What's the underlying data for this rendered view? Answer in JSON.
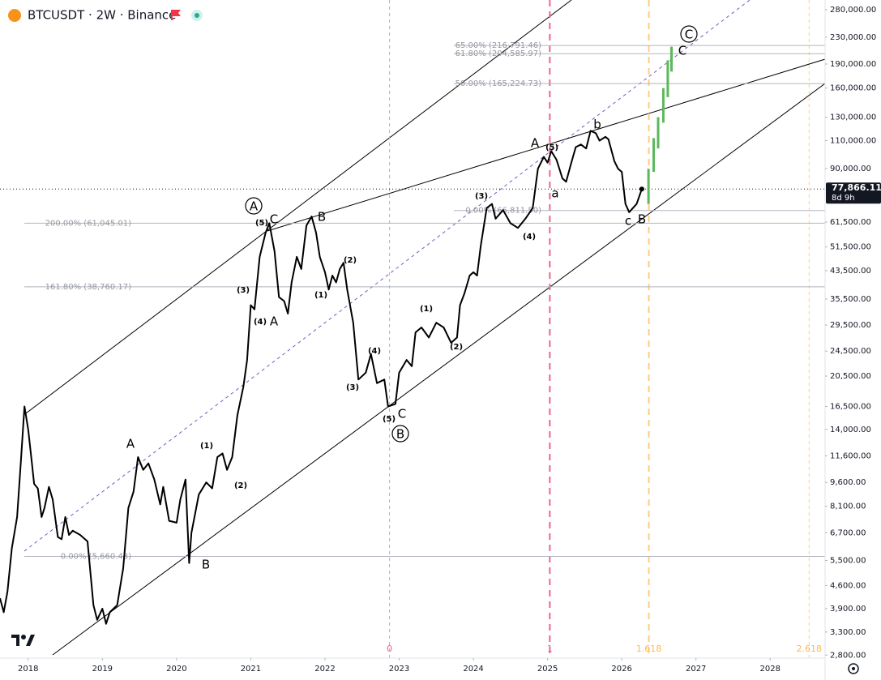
{
  "title": "BTCUSDT · 2W · Binance",
  "chart_data": {
    "type": "line",
    "log_scale": true,
    "xlim": [
      2017.62,
      2028.74
    ],
    "ylim": [
      2740,
      300000
    ],
    "xticks": [
      2018,
      2019,
      2020,
      2021,
      2022,
      2023,
      2024,
      2025,
      2026,
      2027,
      2028
    ],
    "yticks": [
      {
        "value": 280000,
        "label": "280,000.00"
      },
      {
        "value": 230000,
        "label": "230,000.00"
      },
      {
        "value": 190000,
        "label": "190,000.00"
      },
      {
        "value": 160000,
        "label": "160,000.00"
      },
      {
        "value": 130000,
        "label": "130,000.00"
      },
      {
        "value": 110000,
        "label": "110,000.00"
      },
      {
        "value": 90000,
        "label": "90,000.00"
      },
      {
        "value": 61500,
        "label": "61,500.00"
      },
      {
        "value": 51500,
        "label": "51,500.00"
      },
      {
        "value": 43500,
        "label": "43,500.00"
      },
      {
        "value": 35500,
        "label": "35,500.00"
      },
      {
        "value": 29500,
        "label": "29,500.00"
      },
      {
        "value": 24500,
        "label": "24,500.00"
      },
      {
        "value": 20500,
        "label": "20,500.00"
      },
      {
        "value": 16500,
        "label": "16,500.00"
      },
      {
        "value": 14000,
        "label": "14,000.00"
      },
      {
        "value": 11600,
        "label": "11,600.00"
      },
      {
        "value": 9600,
        "label": "9,600.00"
      },
      {
        "value": 8100,
        "label": "8,100.00"
      },
      {
        "value": 6700,
        "label": "6,700.00"
      },
      {
        "value": 5500,
        "label": "5,500.00"
      },
      {
        "value": 4600,
        "label": "4,600.00"
      },
      {
        "value": 3900,
        "label": "3,900.00"
      },
      {
        "value": 3300,
        "label": "3,300.00"
      },
      {
        "value": 2800,
        "label": "2,800.00"
      }
    ],
    "x": [
      2017.62,
      2017.67,
      2017.72,
      2017.78,
      2017.85,
      2017.9,
      2017.95,
      2018.0,
      2018.05,
      2018.08,
      2018.13,
      2018.18,
      2018.22,
      2018.28,
      2018.33,
      2018.4,
      2018.45,
      2018.5,
      2018.55,
      2018.6,
      2018.7,
      2018.8,
      2018.88,
      2018.93,
      2019.0,
      2019.05,
      2019.1,
      2019.2,
      2019.28,
      2019.35,
      2019.42,
      2019.48,
      2019.55,
      2019.62,
      2019.7,
      2019.78,
      2019.82,
      2019.9,
      2020.0,
      2020.05,
      2020.12,
      2020.17,
      2020.2,
      2020.3,
      2020.4,
      2020.48,
      2020.55,
      2020.62,
      2020.68,
      2020.75,
      2020.82,
      2020.9,
      2020.95,
      2021.0,
      2021.05,
      2021.12,
      2021.2,
      2021.25,
      2021.32,
      2021.38,
      2021.45,
      2021.5,
      2021.55,
      2021.62,
      2021.68,
      2021.75,
      2021.82,
      2021.88,
      2021.93,
      2022.0,
      2022.05,
      2022.1,
      2022.15,
      2022.2,
      2022.25,
      2022.3,
      2022.38,
      2022.45,
      2022.55,
      2022.62,
      2022.7,
      2022.8,
      2022.85,
      2022.95,
      2023.0,
      2023.1,
      2023.17,
      2023.22,
      2023.3,
      2023.4,
      2023.5,
      2023.6,
      2023.7,
      2023.78,
      2023.82,
      2023.88,
      2023.95,
      2024.0,
      2024.05,
      2024.1,
      2024.18,
      2024.25,
      2024.3,
      2024.4,
      2024.5,
      2024.6,
      2024.7,
      2024.8,
      2024.87,
      2024.95,
      2025.0,
      2025.05,
      2025.12,
      2025.2,
      2025.25,
      2025.32,
      2025.38,
      2025.45,
      2025.52,
      2025.58,
      2025.65,
      2025.7,
      2025.78,
      2025.82,
      2025.9,
      2025.95,
      2026.0,
      2026.05,
      2026.1,
      2026.15,
      2026.2,
      2026.27
    ],
    "series": [
      {
        "name": "BTCUSDT",
        "color": "#000000",
        "values": [
          4200,
          3800,
          4400,
          6000,
          7500,
          11000,
          16500,
          14000,
          11000,
          9500,
          9200,
          7500,
          8000,
          9300,
          8500,
          6500,
          6400,
          7500,
          6600,
          6800,
          6600,
          6300,
          4000,
          3600,
          3900,
          3500,
          3800,
          4000,
          5200,
          8000,
          9000,
          11500,
          10500,
          11000,
          9800,
          8200,
          9300,
          7300,
          7200,
          8500,
          9800,
          5400,
          6700,
          8800,
          9600,
          9200,
          11500,
          11800,
          10500,
          11500,
          15500,
          19000,
          23000,
          34000,
          33000,
          48000,
          57000,
          61000,
          50000,
          36000,
          35000,
          32000,
          40000,
          48000,
          44000,
          60000,
          64000,
          57000,
          48000,
          43000,
          38000,
          42000,
          40000,
          44000,
          46000,
          38000,
          30000,
          20000,
          21000,
          24000,
          19500,
          20000,
          16500,
          16800,
          21000,
          23000,
          22000,
          28000,
          29000,
          27000,
          30000,
          29000,
          26000,
          27000,
          34000,
          37000,
          42000,
          43000,
          42000,
          52000,
          68000,
          70000,
          63000,
          67000,
          61000,
          59000,
          63000,
          68000,
          90000,
          98000,
          94000,
          102000,
          96000,
          84000,
          82000,
          94000,
          105000,
          107000,
          104000,
          118000,
          116000,
          110000,
          113000,
          111000,
          95000,
          90000,
          88000,
          70000,
          66000,
          68000,
          70000,
          77866.11
        ]
      }
    ],
    "last_price": {
      "value": 77866.11,
      "label": "77,866.11"
    },
    "countdown": "8d 9h",
    "projection": {
      "color": "#5cb85c",
      "x": [
        2026.36,
        2026.43,
        2026.49,
        2026.56,
        2026.62,
        2026.67
      ],
      "low": [
        70000,
        88000,
        104000,
        125000,
        150000,
        180000
      ],
      "high": [
        90000,
        112000,
        130000,
        160000,
        195000,
        215000
      ]
    },
    "fib_sets": [
      {
        "levels": [
          {
            "value": 61045.01,
            "label": "200.00% (61,045.01)"
          },
          {
            "value": 38760.17,
            "label": "161.80% (38,760.17)"
          },
          {
            "value": 5660.48,
            "label": "0.00% (5,660.48)"
          }
        ]
      },
      {
        "levels": [
          {
            "value": 216791.46,
            "label": "65.00% (216,791.46)"
          },
          {
            "value": 204585.97,
            "label": "61.80% (204,585.97)"
          },
          {
            "value": 165224.73,
            "label": "50.00% (165,224.73)"
          },
          {
            "value": 66811.5,
            "label": "0.00% (66,811.50)"
          }
        ]
      }
    ],
    "time_fib": {
      "from_x": 2022.87,
      "to_x": 2025.03,
      "levels": [
        0,
        1,
        1.618,
        2.618
      ]
    },
    "wave_labels": [
      {
        "text": "A",
        "circled": true
      },
      {
        "text": "(5)"
      },
      {
        "text": "C"
      },
      {
        "text": "B"
      },
      {
        "text": "(3)"
      },
      {
        "text": "(4)"
      },
      {
        "text": "A"
      },
      {
        "text": "(1)"
      },
      {
        "text": "(2)"
      },
      {
        "text": "(4)"
      },
      {
        "text": "(3)"
      },
      {
        "text": "(5)"
      },
      {
        "text": "C"
      },
      {
        "text": "B",
        "circled": true
      },
      {
        "text": "(1)"
      },
      {
        "text": "(2)"
      },
      {
        "text": "(3)"
      },
      {
        "text": "(4)"
      },
      {
        "text": "A"
      },
      {
        "text": "(5)"
      },
      {
        "text": "a"
      },
      {
        "text": "b"
      },
      {
        "text": "c"
      },
      {
        "text": "B"
      },
      {
        "text": "C"
      },
      {
        "text": "C",
        "circled": true
      },
      {
        "text": "A"
      },
      {
        "text": "B"
      },
      {
        "text": "(1)"
      },
      {
        "text": "(2)"
      }
    ]
  }
}
